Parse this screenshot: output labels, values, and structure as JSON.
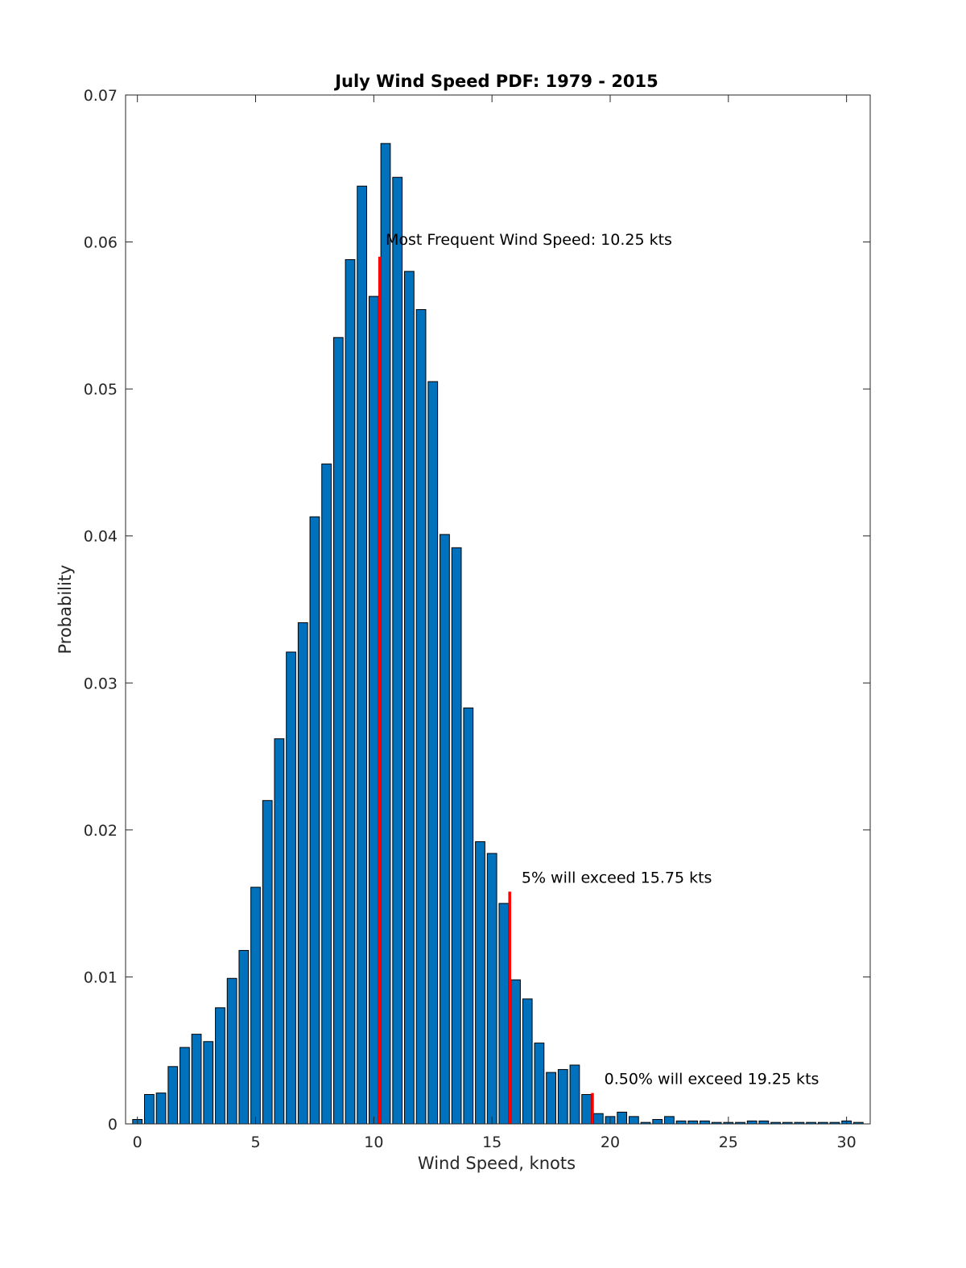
{
  "chart_data": {
    "type": "bar",
    "title": "July Wind Speed PDF: 1979 - 2015",
    "xlabel": "Wind Speed, knots",
    "ylabel": "Probability",
    "xlim": [
      -0.5,
      31
    ],
    "ylim": [
      0,
      0.07
    ],
    "bin_width": 0.5,
    "grid": false,
    "x_ticks": [
      0,
      5,
      10,
      15,
      20,
      25,
      30
    ],
    "x_tick_labels": [
      "0",
      "5",
      "10",
      "15",
      "20",
      "25",
      "30"
    ],
    "y_ticks": [
      0,
      0.01,
      0.02,
      0.03,
      0.04,
      0.05,
      0.06,
      0.07
    ],
    "y_tick_labels": [
      "0",
      "0.01",
      "0.02",
      "0.03",
      "0.04",
      "0.05",
      "0.06",
      "0.07"
    ],
    "x": [
      0,
      0.5,
      1,
      1.5,
      2,
      2.5,
      3,
      3.5,
      4,
      4.5,
      5,
      5.5,
      6,
      6.5,
      7,
      7.5,
      8,
      8.5,
      9,
      9.5,
      10,
      10.5,
      11,
      11.5,
      12,
      12.5,
      13,
      13.5,
      14,
      14.5,
      15,
      15.5,
      16,
      16.5,
      17,
      17.5,
      18,
      18.5,
      19,
      19.5,
      20,
      20.5,
      21,
      21.5,
      22,
      22.5,
      23,
      23.5,
      24,
      24.5,
      25,
      25.5,
      26,
      26.5,
      27,
      27.5,
      28,
      28.5,
      29,
      29.5,
      30,
      30.5
    ],
    "values": [
      0.0003,
      0.002,
      0.0021,
      0.0039,
      0.0052,
      0.0061,
      0.0056,
      0.0079,
      0.0099,
      0.0118,
      0.0161,
      0.022,
      0.0262,
      0.0321,
      0.0341,
      0.0413,
      0.0449,
      0.0535,
      0.0588,
      0.0638,
      0.0563,
      0.0667,
      0.0644,
      0.058,
      0.0554,
      0.0505,
      0.0401,
      0.0392,
      0.0283,
      0.0192,
      0.0184,
      0.015,
      0.0098,
      0.0085,
      0.0055,
      0.0035,
      0.0037,
      0.004,
      0.002,
      0.0007,
      0.0005,
      0.0008,
      0.0005,
      0.0001,
      0.0003,
      0.0005,
      0.0002,
      0.0002,
      0.0002,
      0.0001,
      0.0001,
      0.0001,
      0.0002,
      0.0002,
      0.0001,
      0.0001,
      0.0001,
      0.0001,
      0.0001,
      0.0001,
      0.0002,
      0.0001
    ],
    "bar_color": "#0072bd",
    "marker_color": "#ff0000",
    "markers": [
      {
        "x": 10.25,
        "y": 0.059,
        "label": "Most Frequent Wind Speed: 10.25 kts",
        "label_x": 10.5,
        "label_y": 0.0598
      },
      {
        "x": 15.75,
        "y": 0.0158,
        "label": "5% will exceed 15.75 kts",
        "label_x": 16.25,
        "label_y": 0.0164
      },
      {
        "x": 19.25,
        "y": 0.0021,
        "label": "0.50% will exceed 19.25 kts",
        "label_x": 19.75,
        "label_y": 0.0027
      }
    ]
  }
}
